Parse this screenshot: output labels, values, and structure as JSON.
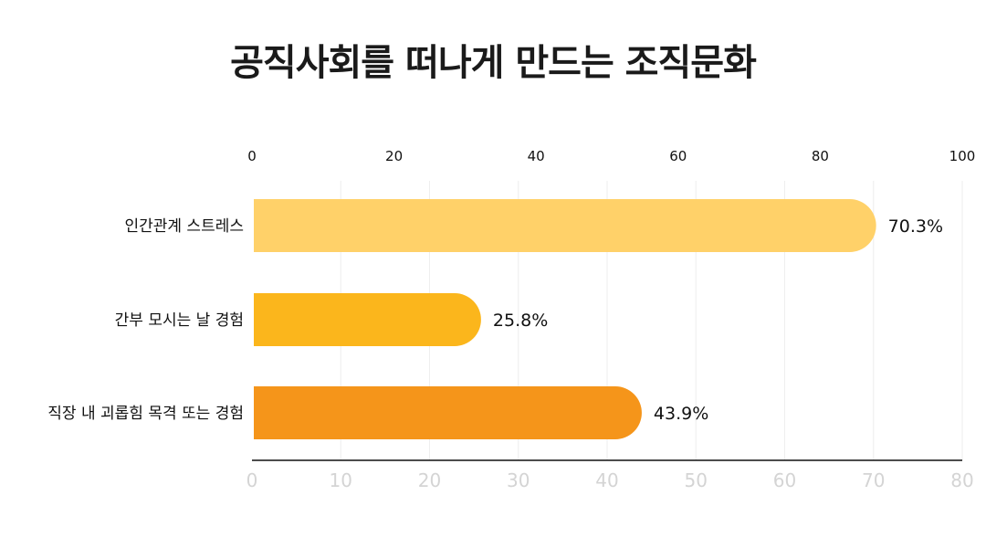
{
  "title": "공직사회를 떠나게 만드는 조직문화",
  "chart_data": {
    "type": "bar",
    "orientation": "horizontal",
    "title": "공직사회를 떠나게 만드는 조직문화",
    "categories": [
      "인간관계 스트레스",
      "간부 모시는 날 경험",
      "직장 내 괴롭힘 목격 또는 경험"
    ],
    "values": [
      70.3,
      25.8,
      43.9
    ],
    "value_labels": [
      "70.3%",
      "25.8%",
      "43.9%"
    ],
    "colors": [
      "#FFD169",
      "#FBB61C",
      "#F5951A"
    ],
    "top_axis": {
      "ticks": [
        0,
        20,
        40,
        60,
        80,
        100
      ],
      "range": [
        0,
        100
      ]
    },
    "bottom_axis": {
      "ticks": [
        0,
        10,
        20,
        30,
        40,
        50,
        60,
        70,
        80
      ],
      "range": [
        0,
        80
      ]
    },
    "grid": true
  }
}
